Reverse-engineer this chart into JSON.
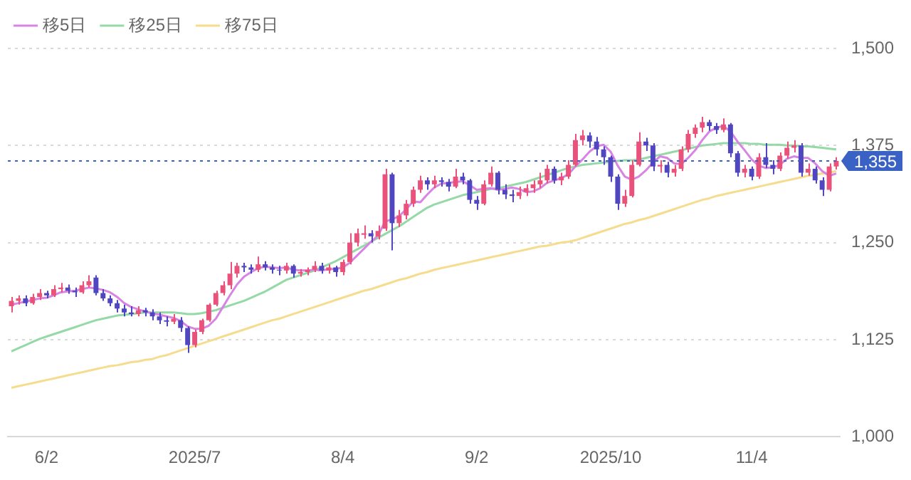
{
  "chart_data": {
    "type": "candlestick",
    "categories": [
      null,
      null,
      null,
      null,
      null,
      "6/2",
      null,
      null,
      null,
      null,
      null,
      null,
      null,
      null,
      null,
      null,
      null,
      null,
      null,
      null,
      null,
      null,
      null,
      null,
      null,
      null,
      "2025/7",
      null,
      null,
      null,
      null,
      null,
      null,
      null,
      null,
      null,
      null,
      null,
      null,
      null,
      null,
      null,
      null,
      null,
      null,
      null,
      null,
      "8/4",
      null,
      null,
      null,
      null,
      null,
      null,
      null,
      null,
      null,
      null,
      null,
      null,
      null,
      null,
      null,
      null,
      null,
      null,
      "9/2",
      null,
      null,
      null,
      null,
      null,
      null,
      null,
      null,
      null,
      null,
      null,
      null,
      null,
      null,
      null,
      null,
      null,
      null,
      "2025/10",
      null,
      null,
      null,
      null,
      null,
      null,
      null,
      null,
      null,
      null,
      null,
      null,
      null,
      null,
      null,
      null,
      null,
      null,
      null,
      "11/4",
      null,
      null,
      null,
      null,
      null,
      null,
      null,
      null,
      null,
      null,
      null,
      null
    ],
    "ohlc": [
      [
        1168,
        1180,
        1160,
        1175
      ],
      [
        1175,
        1182,
        1170,
        1178
      ],
      [
        1178,
        1182,
        1168,
        1172
      ],
      [
        1172,
        1184,
        1170,
        1180
      ],
      [
        1180,
        1190,
        1176,
        1185
      ],
      [
        1185,
        1188,
        1178,
        1182
      ],
      [
        1182,
        1195,
        1180,
        1190
      ],
      [
        1190,
        1198,
        1186,
        1192
      ],
      [
        1192,
        1196,
        1184,
        1188
      ],
      [
        1188,
        1192,
        1180,
        1186
      ],
      [
        1186,
        1200,
        1184,
        1195
      ],
      [
        1195,
        1208,
        1192,
        1200
      ],
      [
        1205,
        1208,
        1182,
        1185
      ],
      [
        1185,
        1190,
        1175,
        1178
      ],
      [
        1178,
        1182,
        1168,
        1172
      ],
      [
        1172,
        1176,
        1160,
        1165
      ],
      [
        1165,
        1170,
        1155,
        1160
      ],
      [
        1160,
        1168,
        1155,
        1158
      ],
      [
        1158,
        1168,
        1155,
        1163
      ],
      [
        1163,
        1166,
        1155,
        1160
      ],
      [
        1160,
        1164,
        1150,
        1155
      ],
      [
        1155,
        1160,
        1145,
        1150
      ],
      [
        1150,
        1155,
        1142,
        1148
      ],
      [
        1148,
        1158,
        1145,
        1152
      ],
      [
        1150,
        1154,
        1135,
        1140
      ],
      [
        1140,
        1142,
        1108,
        1118
      ],
      [
        1118,
        1138,
        1115,
        1135
      ],
      [
        1135,
        1152,
        1132,
        1150
      ],
      [
        1150,
        1172,
        1148,
        1170
      ],
      [
        1170,
        1188,
        1168,
        1185
      ],
      [
        1185,
        1200,
        1182,
        1195
      ],
      [
        1195,
        1225,
        1190,
        1210
      ],
      [
        1210,
        1224,
        1205,
        1220
      ],
      [
        1220,
        1224,
        1212,
        1218
      ],
      [
        1218,
        1222,
        1210,
        1215
      ],
      [
        1215,
        1232,
        1212,
        1222
      ],
      [
        1222,
        1226,
        1214,
        1218
      ],
      [
        1218,
        1222,
        1210,
        1215
      ],
      [
        1215,
        1220,
        1208,
        1214
      ],
      [
        1214,
        1224,
        1210,
        1220
      ],
      [
        1220,
        1222,
        1205,
        1210
      ],
      [
        1210,
        1216,
        1206,
        1212
      ],
      [
        1212,
        1218,
        1208,
        1215
      ],
      [
        1215,
        1226,
        1212,
        1220
      ],
      [
        1220,
        1224,
        1210,
        1214
      ],
      [
        1214,
        1222,
        1210,
        1218
      ],
      [
        1218,
        1220,
        1206,
        1212
      ],
      [
        1212,
        1228,
        1208,
        1225
      ],
      [
        1225,
        1262,
        1222,
        1250
      ],
      [
        1250,
        1268,
        1245,
        1262
      ],
      [
        1260,
        1272,
        1255,
        1262
      ],
      [
        1262,
        1266,
        1250,
        1258
      ],
      [
        1258,
        1272,
        1254,
        1265
      ],
      [
        1268,
        1345,
        1265,
        1338
      ],
      [
        1338,
        1340,
        1240,
        1275
      ],
      [
        1275,
        1292,
        1270,
        1285
      ],
      [
        1285,
        1305,
        1280,
        1300
      ],
      [
        1300,
        1322,
        1296,
        1318
      ],
      [
        1318,
        1336,
        1314,
        1330
      ],
      [
        1330,
        1334,
        1318,
        1325
      ],
      [
        1325,
        1336,
        1320,
        1330
      ],
      [
        1330,
        1334,
        1322,
        1328
      ],
      [
        1328,
        1332,
        1316,
        1322
      ],
      [
        1322,
        1345,
        1320,
        1335
      ],
      [
        1335,
        1340,
        1325,
        1330
      ],
      [
        1330,
        1332,
        1300,
        1305
      ],
      [
        1305,
        1310,
        1292,
        1300
      ],
      [
        1300,
        1330,
        1298,
        1325
      ],
      [
        1325,
        1348,
        1322,
        1340
      ],
      [
        1340,
        1342,
        1312,
        1318
      ],
      [
        1318,
        1325,
        1306,
        1312
      ],
      [
        1312,
        1318,
        1302,
        1310
      ],
      [
        1310,
        1322,
        1306,
        1315
      ],
      [
        1315,
        1325,
        1310,
        1320
      ],
      [
        1320,
        1330,
        1314,
        1325
      ],
      [
        1325,
        1340,
        1320,
        1330
      ],
      [
        1330,
        1350,
        1326,
        1345
      ],
      [
        1345,
        1348,
        1326,
        1330
      ],
      [
        1330,
        1340,
        1324,
        1335
      ],
      [
        1335,
        1356,
        1332,
        1350
      ],
      [
        1350,
        1390,
        1348,
        1382
      ],
      [
        1382,
        1395,
        1375,
        1388
      ],
      [
        1388,
        1392,
        1372,
        1380
      ],
      [
        1380,
        1386,
        1362,
        1370
      ],
      [
        1370,
        1374,
        1350,
        1360
      ],
      [
        1360,
        1362,
        1328,
        1335
      ],
      [
        1335,
        1338,
        1292,
        1300
      ],
      [
        1300,
        1318,
        1296,
        1310
      ],
      [
        1310,
        1356,
        1308,
        1350
      ],
      [
        1350,
        1392,
        1348,
        1380
      ],
      [
        1380,
        1385,
        1368,
        1375
      ],
      [
        1375,
        1378,
        1342,
        1348
      ],
      [
        1348,
        1356,
        1340,
        1350
      ],
      [
        1350,
        1354,
        1334,
        1340
      ],
      [
        1340,
        1350,
        1335,
        1345
      ],
      [
        1345,
        1374,
        1342,
        1370
      ],
      [
        1370,
        1395,
        1366,
        1390
      ],
      [
        1390,
        1402,
        1385,
        1398
      ],
      [
        1398,
        1412,
        1392,
        1405
      ],
      [
        1405,
        1408,
        1394,
        1400
      ],
      [
        1400,
        1404,
        1390,
        1395
      ],
      [
        1395,
        1410,
        1392,
        1402
      ],
      [
        1402,
        1404,
        1360,
        1365
      ],
      [
        1365,
        1368,
        1335,
        1340
      ],
      [
        1340,
        1350,
        1334,
        1345
      ],
      [
        1345,
        1348,
        1330,
        1335
      ],
      [
        1335,
        1365,
        1332,
        1360
      ],
      [
        1360,
        1378,
        1346,
        1350
      ],
      [
        1350,
        1356,
        1338,
        1345
      ],
      [
        1345,
        1366,
        1342,
        1362
      ],
      [
        1362,
        1380,
        1358,
        1372
      ],
      [
        1372,
        1382,
        1366,
        1375
      ],
      [
        1375,
        1378,
        1335,
        1340
      ],
      [
        1340,
        1352,
        1336,
        1345
      ],
      [
        1345,
        1348,
        1326,
        1330
      ],
      [
        1330,
        1334,
        1310,
        1318
      ],
      [
        1318,
        1352,
        1316,
        1348
      ],
      [
        1348,
        1360,
        1344,
        1355
      ]
    ],
    "colors": [
      "#e9537b",
      "#e9537b",
      "#5046c0",
      "#e9537b",
      "#e9537b",
      "#5046c0",
      "#e9537b",
      "#e9537b",
      "#5046c0",
      "#5046c0",
      "#e9537b",
      "#e9537b",
      "#5046c0",
      "#5046c0",
      "#5046c0",
      "#5046c0",
      "#5046c0",
      "#5046c0",
      "#e9537b",
      "#5046c0",
      "#5046c0",
      "#5046c0",
      "#5046c0",
      "#e9537b",
      "#5046c0",
      "#5046c0",
      "#e9537b",
      "#e9537b",
      "#e9537b",
      "#e9537b",
      "#e9537b",
      "#e9537b",
      "#e9537b",
      "#5046c0",
      "#5046c0",
      "#e9537b",
      "#5046c0",
      "#5046c0",
      "#5046c0",
      "#e9537b",
      "#5046c0",
      "#e9537b",
      "#e9537b",
      "#e9537b",
      "#5046c0",
      "#e9537b",
      "#5046c0",
      "#e9537b",
      "#e9537b",
      "#e9537b",
      "#e9537b",
      "#5046c0",
      "#e9537b",
      "#e9537b",
      "#5046c0",
      "#e9537b",
      "#e9537b",
      "#e9537b",
      "#e9537b",
      "#5046c0",
      "#e9537b",
      "#5046c0",
      "#5046c0",
      "#e9537b",
      "#5046c0",
      "#5046c0",
      "#5046c0",
      "#e9537b",
      "#e9537b",
      "#5046c0",
      "#5046c0",
      "#5046c0",
      "#e9537b",
      "#e9537b",
      "#e9537b",
      "#e9537b",
      "#e9537b",
      "#5046c0",
      "#e9537b",
      "#e9537b",
      "#e9537b",
      "#e9537b",
      "#5046c0",
      "#5046c0",
      "#5046c0",
      "#5046c0",
      "#5046c0",
      "#e9537b",
      "#e9537b",
      "#e9537b",
      "#5046c0",
      "#5046c0",
      "#e9537b",
      "#5046c0",
      "#e9537b",
      "#e9537b",
      "#e9537b",
      "#e9537b",
      "#e9537b",
      "#5046c0",
      "#5046c0",
      "#e9537b",
      "#5046c0",
      "#5046c0",
      "#e9537b",
      "#5046c0",
      "#e9537b",
      "#5046c0",
      "#5046c0",
      "#e9537b",
      "#e9537b",
      "#e9537b",
      "#5046c0",
      "#e9537b",
      "#5046c0",
      "#5046c0",
      "#e9537b",
      "#e9537b"
    ],
    "series": [
      {
        "name": "移5日",
        "type": "line",
        "color": "#d884e3",
        "values": [
          1170,
          1172,
          1174,
          1176,
          1178,
          1179,
          1182,
          1186,
          1187,
          1188,
          1190,
          1192,
          1191,
          1189,
          1186,
          1180,
          1172,
          1167,
          1164,
          1161,
          1159,
          1157,
          1155,
          1153,
          1149,
          1142,
          1139,
          1139,
          1143,
          1152,
          1167,
          1182,
          1196,
          1206,
          1212,
          1217,
          1219,
          1218,
          1217,
          1218,
          1215,
          1214,
          1214,
          1215,
          1214,
          1216,
          1216,
          1218,
          1224,
          1233,
          1242,
          1251,
          1259,
          1277,
          1280,
          1284,
          1293,
          1303,
          1302,
          1312,
          1321,
          1326,
          1327,
          1328,
          1329,
          1324,
          1318,
          1319,
          1320,
          1318,
          1319,
          1321,
          1319,
          1315,
          1316,
          1320,
          1327,
          1330,
          1333,
          1338,
          1348,
          1357,
          1367,
          1374,
          1376,
          1367,
          1349,
          1335,
          1331,
          1335,
          1343,
          1353,
          1361,
          1359,
          1352,
          1351,
          1359,
          1369,
          1382,
          1393,
          1398,
          1400,
          1393,
          1380,
          1369,
          1357,
          1349,
          1346,
          1347,
          1350,
          1358,
          1361,
          1359,
          1359,
          1352,
          1342,
          1336,
          1339
        ]
      },
      {
        "name": "移25日",
        "type": "line",
        "color": "#94d9a6",
        "values": [
          1110,
          1114,
          1118,
          1122,
          1126,
          1129,
          1132,
          1135,
          1138,
          1141,
          1144,
          1147,
          1150,
          1152,
          1154,
          1156,
          1157,
          1158,
          1159,
          1160,
          1160,
          1160,
          1160,
          1160,
          1159,
          1158,
          1158,
          1159,
          1161,
          1163,
          1166,
          1169,
          1172,
          1175,
          1179,
          1183,
          1187,
          1192,
          1197,
          1202,
          1205,
          1208,
          1211,
          1214,
          1218,
          1222,
          1226,
          1231,
          1236,
          1241,
          1246,
          1251,
          1256,
          1261,
          1266,
          1271,
          1277,
          1283,
          1289,
          1295,
          1299,
          1302,
          1305,
          1308,
          1311,
          1313,
          1315,
          1317,
          1319,
          1320,
          1322,
          1324,
          1326,
          1328,
          1331,
          1334,
          1337,
          1340,
          1343,
          1346,
          1348,
          1350,
          1351,
          1352,
          1353,
          1354,
          1355,
          1356,
          1356,
          1357,
          1359,
          1361,
          1363,
          1365,
          1367,
          1369,
          1371,
          1373,
          1375,
          1376,
          1377,
          1378,
          1378,
          1378,
          1378,
          1377,
          1377,
          1376,
          1376,
          1376,
          1375,
          1375,
          1374,
          1374,
          1373,
          1372,
          1371,
          1370
        ]
      },
      {
        "name": "移75日",
        "type": "line",
        "color": "#f6dc8e",
        "values": [
          1063,
          1065,
          1067,
          1069,
          1071,
          1073,
          1075,
          1077,
          1079,
          1081,
          1083,
          1085,
          1087,
          1089,
          1091,
          1092,
          1094,
          1096,
          1097,
          1099,
          1100,
          1103,
          1105,
          1108,
          1111,
          1114,
          1117,
          1120,
          1123,
          1126,
          1129,
          1132,
          1135,
          1138,
          1141,
          1144,
          1147,
          1150,
          1152,
          1155,
          1158,
          1161,
          1164,
          1167,
          1170,
          1173,
          1176,
          1179,
          1182,
          1185,
          1188,
          1190,
          1193,
          1196,
          1199,
          1202,
          1204,
          1207,
          1210,
          1212,
          1215,
          1217,
          1219,
          1221,
          1223,
          1225,
          1227,
          1229,
          1231,
          1233,
          1235,
          1237,
          1239,
          1241,
          1243,
          1245,
          1246,
          1248,
          1250,
          1251,
          1253,
          1256,
          1259,
          1262,
          1265,
          1268,
          1271,
          1274,
          1276,
          1279,
          1281,
          1284,
          1287,
          1290,
          1293,
          1296,
          1299,
          1302,
          1305,
          1307,
          1310,
          1312,
          1314,
          1316,
          1318,
          1320,
          1322,
          1324,
          1326,
          1328,
          1330,
          1332,
          1334,
          1336,
          1337,
          1339,
          1340,
          1342
        ]
      }
    ],
    "ylim": [
      1000,
      1500
    ],
    "yticks": [
      {
        "value": 1000,
        "label": "1,000"
      },
      {
        "value": 1125,
        "label": "1,125"
      },
      {
        "value": 1250,
        "label": "1,250"
      },
      {
        "value": 1375,
        "label": "1,375"
      },
      {
        "value": 1500,
        "label": "1,500"
      }
    ],
    "grid": "y",
    "legend": "top left",
    "ref_lines": [
      {
        "axis": "y",
        "value": 1355,
        "label": "1,355",
        "color": "#3a62c4",
        "line_style": "dotted"
      }
    ]
  }
}
